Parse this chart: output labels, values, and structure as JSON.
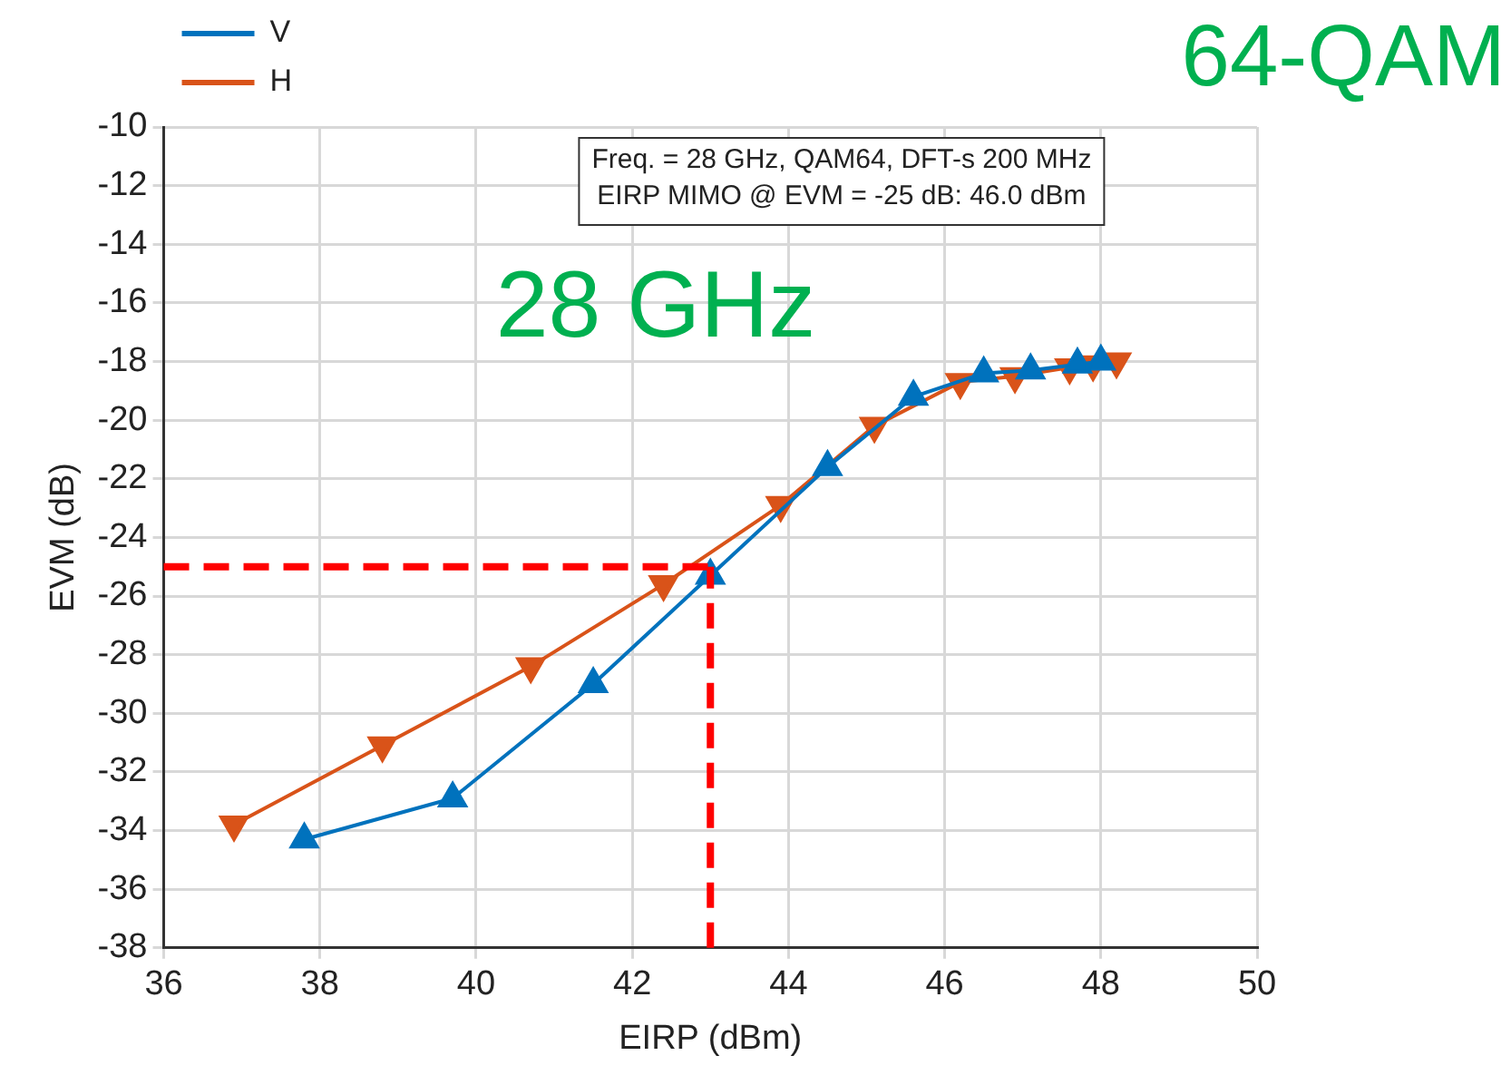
{
  "chart_data": {
    "type": "line",
    "xlabel": "EIRP (dBm)",
    "ylabel": "EVM (dB)",
    "xlim": [
      36,
      50
    ],
    "xticks": [
      36,
      38,
      40,
      42,
      44,
      46,
      48,
      50
    ],
    "ylim": [
      -38,
      -10
    ],
    "yticks": [
      -38,
      -36,
      -34,
      -32,
      -30,
      -28,
      -26,
      -24,
      -22,
      -20,
      -18,
      -16,
      -14,
      -12,
      -10
    ],
    "grid": true,
    "legend": "top left",
    "series": [
      {
        "name": "V",
        "color": "#0072bd",
        "marker": "triangle",
        "x": [
          37.8,
          39.7,
          41.5,
          43.0,
          44.5,
          45.6,
          46.5,
          47.1,
          47.7,
          48.0
        ],
        "values": [
          -34.3,
          -32.9,
          -29.0,
          -25.3,
          -21.6,
          -19.2,
          -18.4,
          -18.3,
          -18.1,
          -18.0
        ]
      },
      {
        "name": "H",
        "color": "#d95319",
        "marker": "triangle-down",
        "x": [
          36.9,
          38.8,
          40.7,
          42.4,
          43.9,
          45.1,
          46.2,
          46.9,
          47.6,
          47.9,
          48.2
        ],
        "values": [
          -33.8,
          -31.1,
          -28.4,
          -25.6,
          -22.9,
          -20.2,
          -18.7,
          -18.5,
          -18.2,
          -18.1,
          -18.0
        ]
      }
    ],
    "ref_lines": [
      {
        "axis": "y",
        "value": -25,
        "color": "#ff0000",
        "line_style": "dashed"
      },
      {
        "axis": "x",
        "value": 43,
        "color": "#ff0000",
        "line_style": "dashed"
      }
    ],
    "annotations": [
      "Freq. = 28 GHz, QAM64, DFT-s 200 MHz\nEIRP MIMO @ EVM = -25 dB: 46.0 dBm",
      "28 GHz",
      "64-QAM"
    ]
  }
}
